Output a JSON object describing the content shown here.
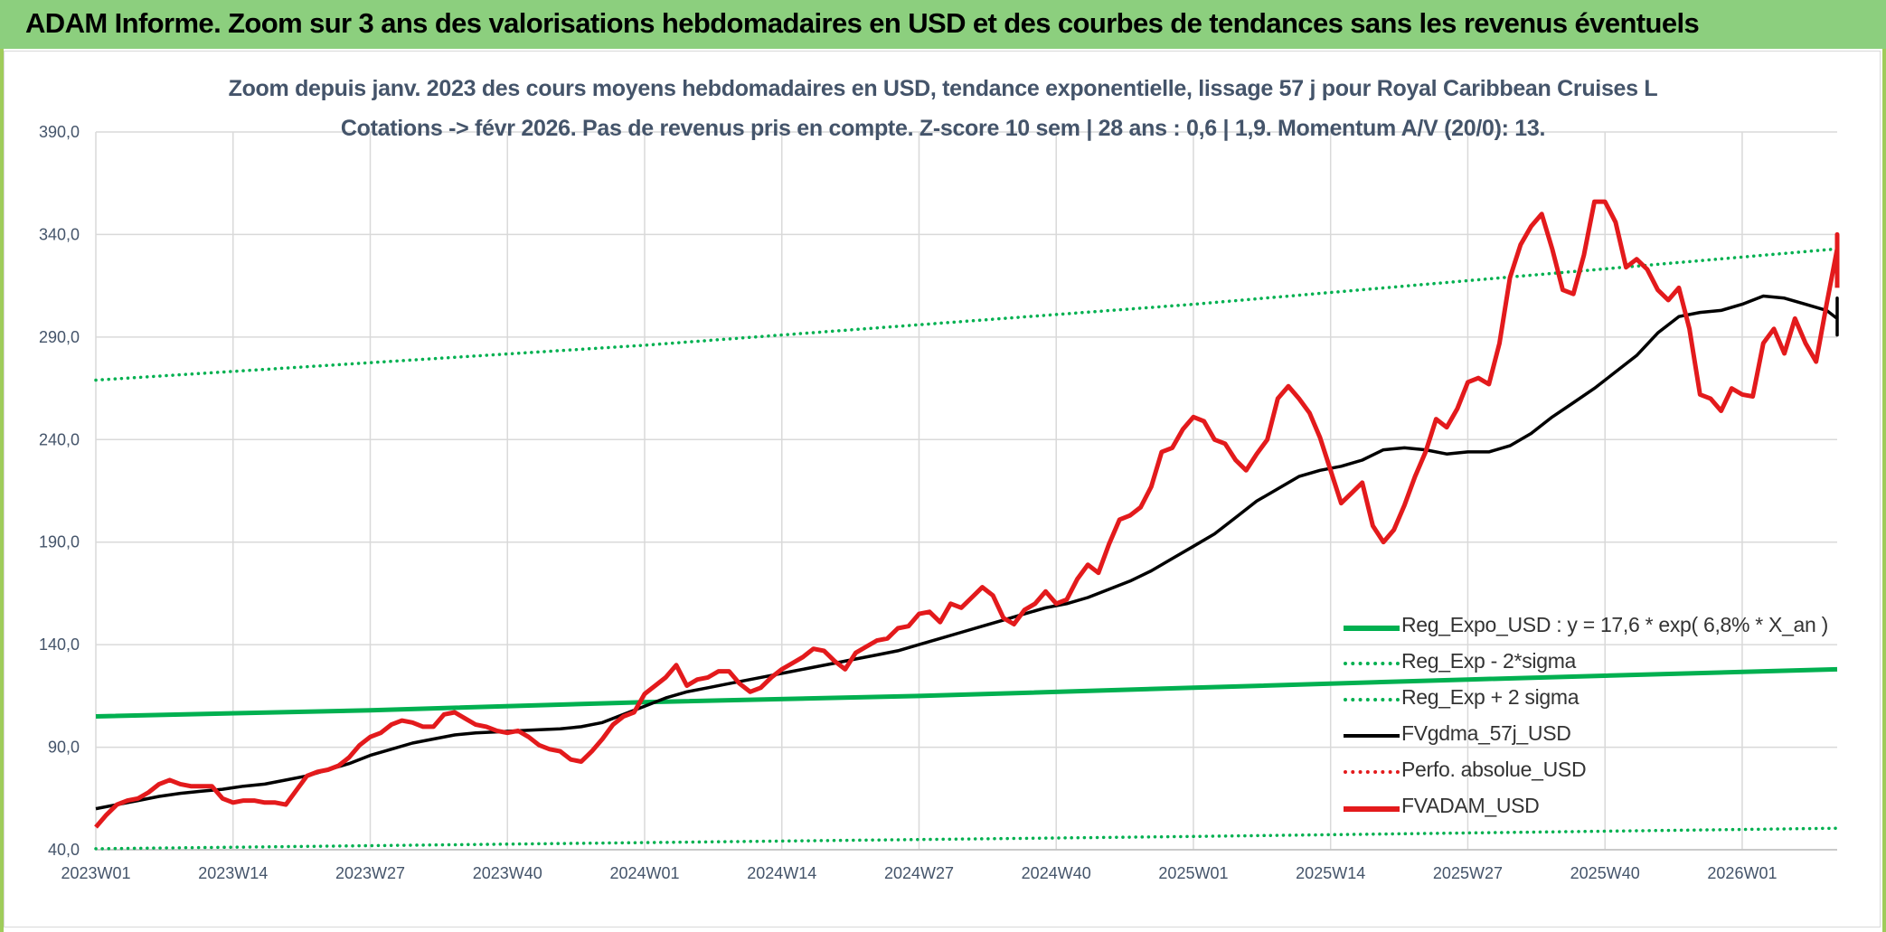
{
  "header": {
    "title": "ADAM Informe. Zoom sur 3 ans des valorisations hebdomadaires en USD et des courbes de tendances sans les revenus éventuels"
  },
  "colors": {
    "header_bg": "#8ccf7e",
    "reg_expo": "#00b050",
    "fvadam": "#e31a1c",
    "fvgdma": "#000000",
    "perfo": "#e31a1c",
    "text": "#44546a"
  },
  "chart_data": {
    "type": "line",
    "title": "Zoom depuis janv. 2023 des cours moyens hebdomadaires en USD, tendance exponentielle, lissage 57 j pour Royal Caribbean Cruises L",
    "subtitle": "Cotations -> févr 2026. Pas de revenus pris en compte. Z-score 10 sem | 28 ans : 0,6 | 1,9. Momentum A/V (20/0): 13.",
    "xlabel": "",
    "ylabel": "",
    "ylim": [
      40,
      390
    ],
    "yticks": [
      "40,0",
      "90,0",
      "140,0",
      "190,0",
      "240,0",
      "290,0",
      "340,0",
      "390,0"
    ],
    "ytick_values": [
      40,
      90,
      140,
      190,
      240,
      290,
      340,
      390
    ],
    "xticks": [
      "2023W01",
      "2023W14",
      "2023W27",
      "2023W40",
      "2024W01",
      "2024W14",
      "2024W27",
      "2024W40",
      "2025W01",
      "2025W14",
      "2025W27",
      "2025W40",
      "2026W01"
    ],
    "xtick_index": [
      0,
      13,
      26,
      39,
      52,
      65,
      78,
      91,
      104,
      117,
      130,
      143,
      156
    ],
    "x_count": 166,
    "grid": true,
    "legend_position": "bottom-right",
    "series": [
      {
        "name": "Reg_Expo_USD : y = 17,6 * exp( 6,8% *  X_an )",
        "style": "solid-thick",
        "color": "#00b050",
        "points": [
          [
            0,
            105
          ],
          [
            26,
            108
          ],
          [
            52,
            112
          ],
          [
            78,
            115
          ],
          [
            104,
            119
          ],
          [
            130,
            123
          ],
          [
            165,
            128
          ]
        ]
      },
      {
        "name": "Reg_Exp - 2*sigma",
        "style": "dotted",
        "color": "#00b050",
        "points": [
          [
            0,
            40.5
          ],
          [
            52,
            43.5
          ],
          [
            104,
            46.5
          ],
          [
            165,
            50.5
          ]
        ]
      },
      {
        "name": "Reg_Exp + 2 sigma",
        "style": "dotted",
        "color": "#00b050",
        "points": [
          [
            0,
            269
          ],
          [
            52,
            286
          ],
          [
            104,
            306
          ],
          [
            165,
            333
          ]
        ]
      },
      {
        "name": "FVgdma_57j_USD",
        "style": "solid",
        "color": "#000000",
        "points": [
          [
            0,
            60
          ],
          [
            2,
            62
          ],
          [
            4,
            64
          ],
          [
            6,
            66
          ],
          [
            8,
            67.5
          ],
          [
            10,
            68.5
          ],
          [
            12,
            69.5
          ],
          [
            14,
            71
          ],
          [
            16,
            72
          ],
          [
            18,
            74
          ],
          [
            20,
            76
          ],
          [
            22,
            79
          ],
          [
            24,
            82
          ],
          [
            26,
            86
          ],
          [
            28,
            89
          ],
          [
            30,
            92
          ],
          [
            32,
            94
          ],
          [
            34,
            96
          ],
          [
            36,
            97
          ],
          [
            38,
            97.5
          ],
          [
            40,
            98
          ],
          [
            42,
            98.5
          ],
          [
            44,
            99
          ],
          [
            46,
            100
          ],
          [
            48,
            102
          ],
          [
            50,
            106
          ],
          [
            52,
            110
          ],
          [
            54,
            114
          ],
          [
            56,
            117
          ],
          [
            58,
            119
          ],
          [
            60,
            121
          ],
          [
            62,
            123
          ],
          [
            64,
            125
          ],
          [
            66,
            127
          ],
          [
            68,
            129
          ],
          [
            70,
            131
          ],
          [
            72,
            133
          ],
          [
            74,
            135
          ],
          [
            76,
            137
          ],
          [
            78,
            140
          ],
          [
            80,
            143
          ],
          [
            82,
            146
          ],
          [
            84,
            149
          ],
          [
            86,
            152
          ],
          [
            88,
            155
          ],
          [
            90,
            158
          ],
          [
            92,
            160
          ],
          [
            94,
            163
          ],
          [
            96,
            167
          ],
          [
            98,
            171
          ],
          [
            100,
            176
          ],
          [
            102,
            182
          ],
          [
            104,
            188
          ],
          [
            106,
            194
          ],
          [
            108,
            202
          ],
          [
            110,
            210
          ],
          [
            112,
            216
          ],
          [
            114,
            222
          ],
          [
            116,
            225
          ],
          [
            118,
            227
          ],
          [
            120,
            230
          ],
          [
            122,
            235
          ],
          [
            124,
            236
          ],
          [
            126,
            235
          ],
          [
            128,
            233
          ],
          [
            130,
            234
          ],
          [
            132,
            234
          ],
          [
            134,
            237
          ],
          [
            136,
            243
          ],
          [
            138,
            251
          ],
          [
            140,
            258
          ],
          [
            142,
            265
          ],
          [
            144,
            273
          ],
          [
            146,
            281
          ],
          [
            148,
            292
          ],
          [
            150,
            300
          ],
          [
            152,
            302
          ],
          [
            154,
            303
          ],
          [
            156,
            306
          ],
          [
            158,
            310
          ],
          [
            160,
            309
          ],
          [
            162,
            306
          ],
          [
            164,
            303
          ],
          [
            166,
            299
          ],
          [
            168,
            297
          ],
          [
            170,
            293
          ],
          [
            172,
            291
          ],
          [
            174,
            291
          ],
          [
            176,
            292
          ],
          [
            178,
            295
          ],
          [
            180,
            296
          ],
          [
            182,
            298
          ],
          [
            184,
            300
          ],
          [
            186,
            301
          ],
          [
            188,
            306
          ],
          [
            190,
            309
          ],
          [
            192,
            308
          ],
          [
            194,
            308
          ]
        ]
      },
      {
        "name": "Perfo. absolue_USD",
        "style": "dotted",
        "color": "#e31a1c",
        "points": []
      },
      {
        "name": "FVADAM_USD",
        "style": "solid-thick",
        "color": "#e31a1c",
        "points": [
          [
            0,
            51
          ],
          [
            1,
            57
          ],
          [
            2,
            62
          ],
          [
            3,
            64
          ],
          [
            4,
            65
          ],
          [
            5,
            68
          ],
          [
            6,
            72
          ],
          [
            7,
            74
          ],
          [
            8,
            72
          ],
          [
            9,
            71
          ],
          [
            10,
            71
          ],
          [
            11,
            71
          ],
          [
            12,
            65
          ],
          [
            13,
            63
          ],
          [
            14,
            64
          ],
          [
            15,
            64
          ],
          [
            16,
            63
          ],
          [
            17,
            63
          ],
          [
            18,
            62
          ],
          [
            19,
            69
          ],
          [
            20,
            76
          ],
          [
            21,
            78
          ],
          [
            22,
            79
          ],
          [
            23,
            81
          ],
          [
            24,
            85
          ],
          [
            25,
            91
          ],
          [
            26,
            95
          ],
          [
            27,
            97
          ],
          [
            28,
            101
          ],
          [
            29,
            103
          ],
          [
            30,
            102
          ],
          [
            31,
            100
          ],
          [
            32,
            100
          ],
          [
            33,
            106
          ],
          [
            34,
            107
          ],
          [
            35,
            104
          ],
          [
            36,
            101
          ],
          [
            37,
            100
          ],
          [
            38,
            98
          ],
          [
            39,
            97
          ],
          [
            40,
            98
          ],
          [
            41,
            95
          ],
          [
            42,
            91
          ],
          [
            43,
            89
          ],
          [
            44,
            88
          ],
          [
            45,
            84
          ],
          [
            46,
            83
          ],
          [
            47,
            88
          ],
          [
            48,
            94
          ],
          [
            49,
            101
          ],
          [
            50,
            105
          ],
          [
            51,
            107
          ],
          [
            52,
            116
          ],
          [
            53,
            120
          ],
          [
            54,
            124
          ],
          [
            55,
            130
          ],
          [
            56,
            120
          ],
          [
            57,
            123
          ],
          [
            58,
            124
          ],
          [
            59,
            127
          ],
          [
            60,
            127
          ],
          [
            61,
            121
          ],
          [
            62,
            117
          ],
          [
            63,
            119
          ],
          [
            64,
            124
          ],
          [
            65,
            128
          ],
          [
            66,
            131
          ],
          [
            67,
            134
          ],
          [
            68,
            138
          ],
          [
            69,
            137
          ],
          [
            70,
            132
          ],
          [
            71,
            128
          ],
          [
            72,
            136
          ],
          [
            73,
            139
          ],
          [
            74,
            142
          ],
          [
            75,
            143
          ],
          [
            76,
            148
          ],
          [
            77,
            149
          ],
          [
            78,
            155
          ],
          [
            79,
            156
          ],
          [
            80,
            151
          ],
          [
            81,
            160
          ],
          [
            82,
            158
          ],
          [
            83,
            163
          ],
          [
            84,
            168
          ],
          [
            85,
            164
          ],
          [
            86,
            153
          ],
          [
            87,
            150
          ],
          [
            88,
            157
          ],
          [
            89,
            160
          ],
          [
            90,
            166
          ],
          [
            91,
            160
          ],
          [
            92,
            162
          ],
          [
            93,
            172
          ],
          [
            94,
            179
          ],
          [
            95,
            175
          ],
          [
            96,
            189
          ],
          [
            97,
            201
          ],
          [
            98,
            203
          ],
          [
            99,
            207
          ],
          [
            100,
            217
          ],
          [
            101,
            234
          ],
          [
            102,
            236
          ],
          [
            103,
            245
          ],
          [
            104,
            251
          ],
          [
            105,
            249
          ],
          [
            106,
            240
          ],
          [
            107,
            238
          ],
          [
            108,
            230
          ],
          [
            109,
            225
          ],
          [
            110,
            233
          ],
          [
            111,
            240
          ],
          [
            112,
            260
          ],
          [
            113,
            266
          ],
          [
            114,
            260
          ],
          [
            115,
            253
          ],
          [
            116,
            241
          ],
          [
            117,
            225
          ],
          [
            118,
            209
          ],
          [
            119,
            214
          ],
          [
            120,
            219
          ],
          [
            121,
            198
          ],
          [
            122,
            190
          ],
          [
            123,
            196
          ],
          [
            124,
            208
          ],
          [
            125,
            222
          ],
          [
            126,
            234
          ],
          [
            127,
            250
          ],
          [
            128,
            246
          ],
          [
            129,
            255
          ],
          [
            130,
            268
          ],
          [
            131,
            270
          ],
          [
            132,
            267
          ],
          [
            133,
            287
          ],
          [
            134,
            319
          ],
          [
            135,
            335
          ],
          [
            136,
            344
          ],
          [
            137,
            350
          ],
          [
            138,
            333
          ],
          [
            139,
            313
          ],
          [
            140,
            311
          ],
          [
            141,
            330
          ],
          [
            142,
            356
          ],
          [
            143,
            356
          ],
          [
            144,
            346
          ],
          [
            145,
            324
          ],
          [
            146,
            328
          ],
          [
            147,
            323
          ],
          [
            148,
            313
          ],
          [
            149,
            308
          ],
          [
            150,
            314
          ],
          [
            151,
            294
          ],
          [
            152,
            262
          ],
          [
            153,
            260
          ],
          [
            154,
            254
          ],
          [
            155,
            265
          ],
          [
            156,
            262
          ],
          [
            157,
            261
          ],
          [
            158,
            287
          ],
          [
            159,
            294
          ],
          [
            160,
            282
          ],
          [
            161,
            299
          ],
          [
            162,
            287
          ],
          [
            163,
            278
          ],
          [
            164,
            306
          ],
          [
            165,
            333
          ],
          [
            166,
            340
          ],
          [
            167,
            318
          ],
          [
            168,
            314
          ]
        ]
      }
    ]
  }
}
